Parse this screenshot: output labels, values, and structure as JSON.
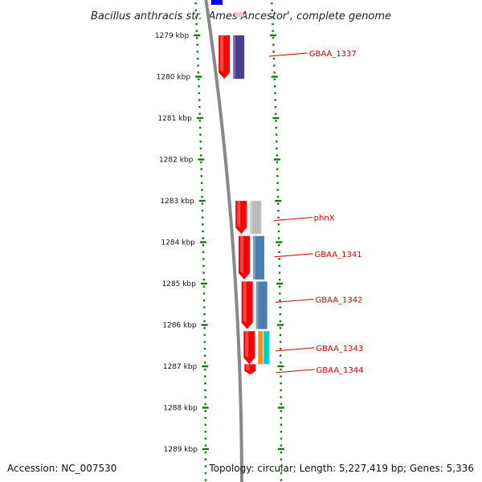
{
  "title": "Bacillus anthracis str. 'Ames Ancestor', complete genome",
  "footer": {
    "accession": "Accession: NC_007530",
    "summary": "Topology: circular; Length: 5,227,419 bp; Genes: 5,336"
  },
  "colors": {
    "tick": "#117711",
    "backbone": "#888888",
    "cds_strand": "#ff0000",
    "label": "#cc0000",
    "cog_purple": "#4a3d8f",
    "cog_grey": "#bbbbbb",
    "cog_steelblue": "#4a7fb0",
    "cog_orange": "#ff8c1a",
    "cog_cyan": "#00cccc",
    "top_blue": "#0000ee"
  },
  "scale": {
    "unit": "kbp",
    "ticks": [
      {
        "kbp": 1279,
        "label": "1279 kbp"
      },
      {
        "kbp": 1280,
        "label": "1280 kbp"
      },
      {
        "kbp": 1281,
        "label": "1281 kbp"
      },
      {
        "kbp": 1282,
        "label": "1282 kbp"
      },
      {
        "kbp": 1283,
        "label": "1283 kbp"
      },
      {
        "kbp": 1284,
        "label": "1284 kbp"
      },
      {
        "kbp": 1285,
        "label": "1285 kbp"
      },
      {
        "kbp": 1286,
        "label": "1286 kbp"
      },
      {
        "kbp": 1287,
        "label": "1287 kbp"
      },
      {
        "kbp": 1288,
        "label": "1288 kbp"
      },
      {
        "kbp": 1289,
        "label": "1289 kbp"
      }
    ]
  },
  "genes": [
    {
      "label": "GBAA_1337",
      "start_kbp": 1279.0,
      "end_kbp": 1280.05,
      "cog_color": "#4a3d8f"
    },
    {
      "label": "phnX",
      "start_kbp": 1283.0,
      "end_kbp": 1283.8,
      "cog_color": "#bbbbbb"
    },
    {
      "label": "GBAA_1341",
      "start_kbp": 1283.85,
      "end_kbp": 1284.9,
      "cog_color": "#4a7fb0"
    },
    {
      "label": "GBAA_1342",
      "start_kbp": 1284.95,
      "end_kbp": 1286.1,
      "cog_color": "#4a7fb0"
    },
    {
      "label": "GBAA_1343",
      "start_kbp": 1286.15,
      "end_kbp": 1286.95,
      "cog_color": [
        "#ff8c1a",
        "#00cccc"
      ]
    },
    {
      "label": "GBAA_1344",
      "start_kbp": 1286.95,
      "end_kbp": 1287.2,
      "cog_color": null
    }
  ]
}
